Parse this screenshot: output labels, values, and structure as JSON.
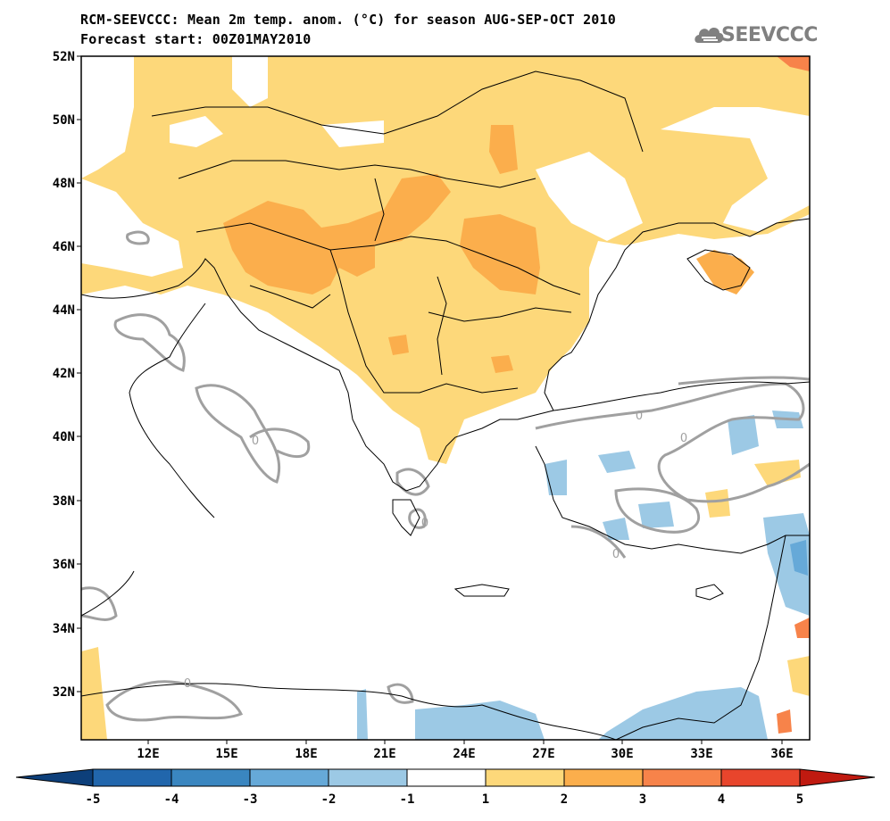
{
  "header": {
    "title_line1": "RCM-SEEVCCC: Mean 2m temp. anom. (°C) for season AUG-SEP-OCT 2010",
    "title_line2": "Forecast start: 00Z01MAY2010",
    "logo_text": "SEEVCCC",
    "logo_icon": "cloud-logo-icon"
  },
  "map": {
    "lat_ticks": [
      "52N",
      "50N",
      "48N",
      "46N",
      "44N",
      "42N",
      "40N",
      "38N",
      "36N",
      "34N",
      "32N"
    ],
    "lon_ticks": [
      "12E",
      "15E",
      "18E",
      "21E",
      "24E",
      "27E",
      "30E",
      "33E",
      "36E"
    ],
    "contour_label": "0"
  },
  "colorbar": {
    "labels": [
      "-5",
      "-4",
      "-3",
      "-2",
      "-1",
      "1",
      "2",
      "3",
      "4",
      "5"
    ],
    "colors": [
      "#2166ac",
      "#3a86c0",
      "#66a9d8",
      "#9cc9e5",
      "#ffffff",
      "#fdd87a",
      "#fbae4c",
      "#f7834a",
      "#e8452c"
    ],
    "under_color": "#0d3f7a",
    "over_color": "#c01a10"
  },
  "colors": {
    "light_orange": "#fdd87a",
    "medium_orange": "#fbae4c",
    "light_blue": "#9cc9e5",
    "contour": "#a0a0a0"
  }
}
